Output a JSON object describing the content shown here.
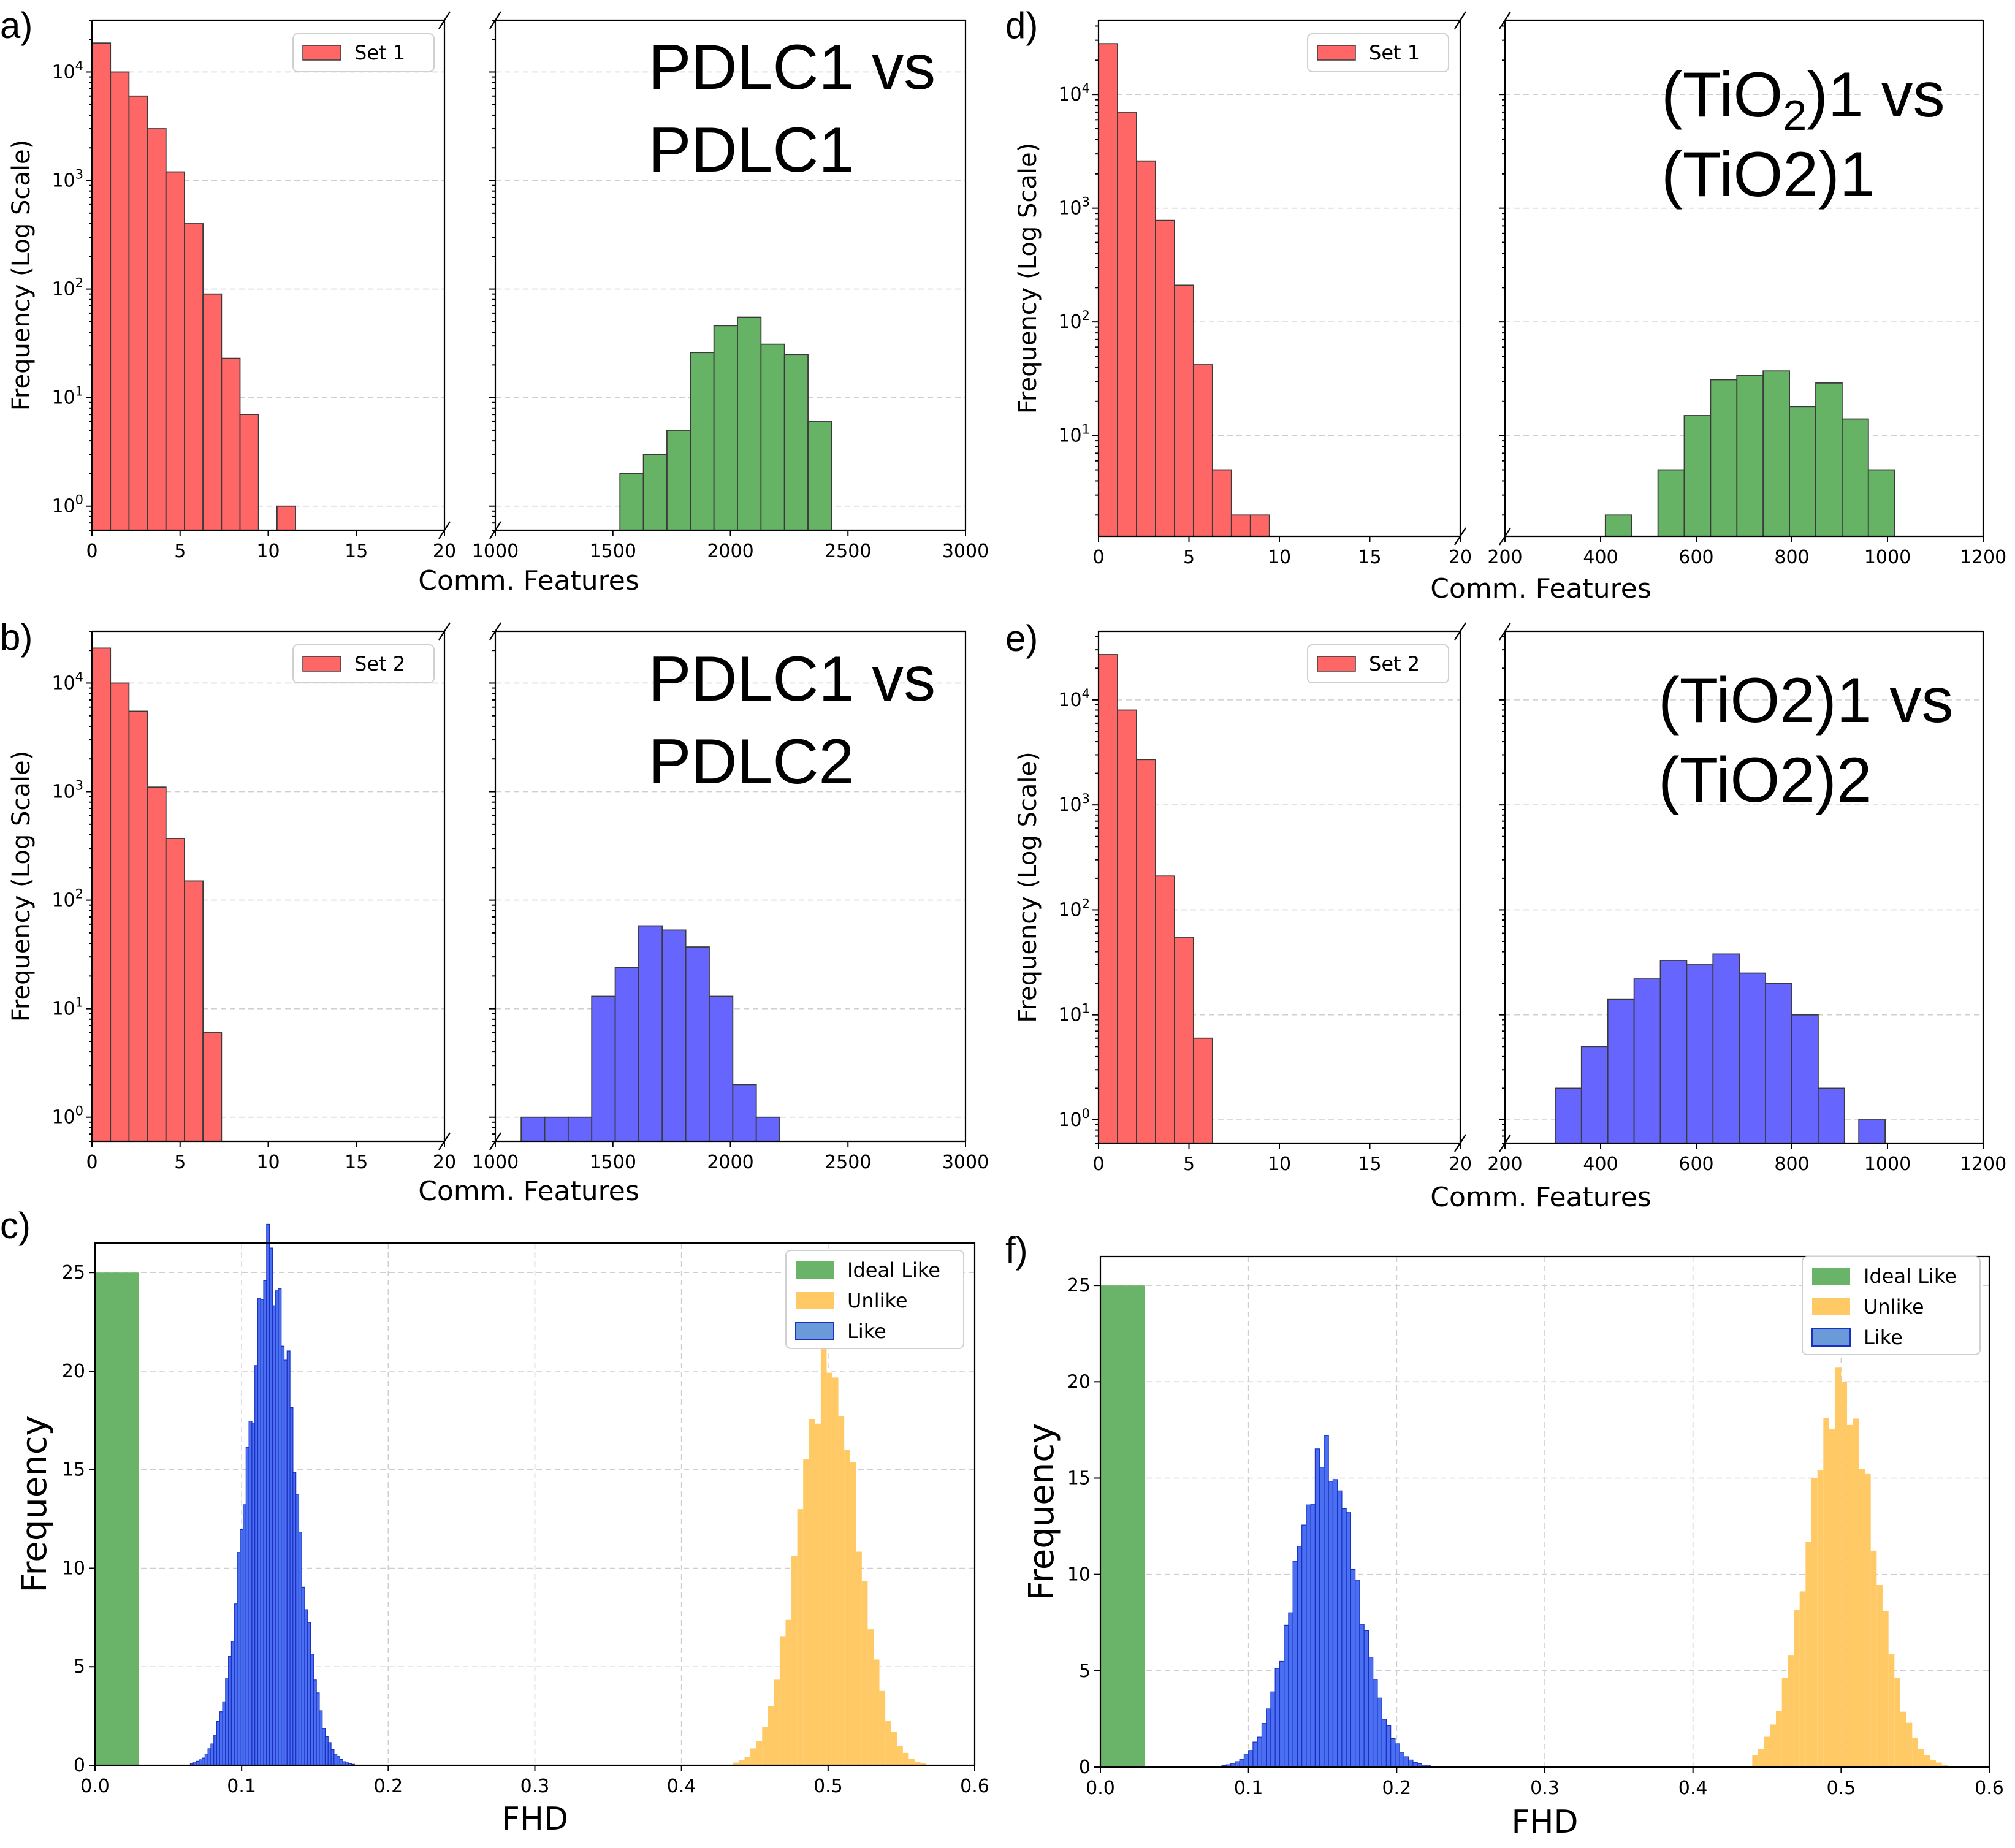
{
  "chart_data": [
    {
      "panel": "a)",
      "type": "bar",
      "layout": "broken-x-axis histogram pair",
      "ylabel": "Frequency (Log Scale)",
      "xlabel": "Comm. Features",
      "yscale": "log",
      "ylim": [
        0.6,
        30000
      ],
      "left": {
        "series": "Set 1",
        "color": "#ff6666",
        "xlim": [
          0,
          20
        ],
        "xticks": [
          "0",
          "5",
          "10",
          "15",
          "20"
        ],
        "bins": [
          {
            "x0": 0,
            "x1": 1.05,
            "v": 18500
          },
          {
            "x0": 1.05,
            "x1": 2.1,
            "v": 10000
          },
          {
            "x0": 2.1,
            "x1": 3.15,
            "v": 6000
          },
          {
            "x0": 3.15,
            "x1": 4.2,
            "v": 3000
          },
          {
            "x0": 4.2,
            "x1": 5.25,
            "v": 1200
          },
          {
            "x0": 5.25,
            "x1": 6.3,
            "v": 400
          },
          {
            "x0": 6.3,
            "x1": 7.35,
            "v": 90
          },
          {
            "x0": 7.35,
            "x1": 8.4,
            "v": 23
          },
          {
            "x0": 8.4,
            "x1": 9.45,
            "v": 7
          },
          {
            "x0": 10.5,
            "x1": 11.55,
            "v": 1
          }
        ]
      },
      "right": {
        "color": "#66b366",
        "xlim": [
          1000,
          3000
        ],
        "xticks": [
          "1000",
          "1500",
          "2000",
          "2500",
          "3000"
        ],
        "bins": [
          {
            "x0": 1530,
            "x1": 1630,
            "v": 2
          },
          {
            "x0": 1630,
            "x1": 1730,
            "v": 3
          },
          {
            "x0": 1730,
            "x1": 1830,
            "v": 5
          },
          {
            "x0": 1830,
            "x1": 1930,
            "v": 26
          },
          {
            "x0": 1930,
            "x1": 2030,
            "v": 46
          },
          {
            "x0": 2030,
            "x1": 2130,
            "v": 55
          },
          {
            "x0": 2130,
            "x1": 2230,
            "v": 31
          },
          {
            "x0": 2230,
            "x1": 2330,
            "v": 25
          },
          {
            "x0": 2330,
            "x1": 2430,
            "v": 6
          }
        ]
      },
      "legend": [
        "Set 1"
      ],
      "annotation": [
        "PDLC1 vs",
        "PDLC1"
      ]
    },
    {
      "panel": "b)",
      "type": "bar",
      "layout": "broken-x-axis histogram pair",
      "ylabel": "Frequency (Log Scale)",
      "xlabel": "Comm. Features",
      "yscale": "log",
      "ylim": [
        0.6,
        30000
      ],
      "left": {
        "series": "Set 2",
        "color": "#ff6666",
        "xlim": [
          0,
          20
        ],
        "xticks": [
          "0",
          "5",
          "10",
          "15",
          "20"
        ],
        "bins": [
          {
            "x0": 0,
            "x1": 1.05,
            "v": 21000
          },
          {
            "x0": 1.05,
            "x1": 2.1,
            "v": 10000
          },
          {
            "x0": 2.1,
            "x1": 3.15,
            "v": 5500
          },
          {
            "x0": 3.15,
            "x1": 4.2,
            "v": 1100
          },
          {
            "x0": 4.2,
            "x1": 5.25,
            "v": 370
          },
          {
            "x0": 5.25,
            "x1": 6.3,
            "v": 150
          },
          {
            "x0": 6.3,
            "x1": 7.35,
            "v": 6
          }
        ]
      },
      "right": {
        "color": "#6666ff",
        "xlim": [
          1000,
          3000
        ],
        "xticks": [
          "1000",
          "1500",
          "2000",
          "2500",
          "3000"
        ],
        "bins": [
          {
            "x0": 1110,
            "x1": 1210,
            "v": 1
          },
          {
            "x0": 1210,
            "x1": 1310,
            "v": 1
          },
          {
            "x0": 1310,
            "x1": 1410,
            "v": 1
          },
          {
            "x0": 1410,
            "x1": 1510,
            "v": 13
          },
          {
            "x0": 1510,
            "x1": 1610,
            "v": 24
          },
          {
            "x0": 1610,
            "x1": 1710,
            "v": 58
          },
          {
            "x0": 1710,
            "x1": 1810,
            "v": 53
          },
          {
            "x0": 1810,
            "x1": 1910,
            "v": 37
          },
          {
            "x0": 1910,
            "x1": 2010,
            "v": 13
          },
          {
            "x0": 2010,
            "x1": 2110,
            "v": 2
          },
          {
            "x0": 2110,
            "x1": 2210,
            "v": 1
          }
        ]
      },
      "legend": [
        "Set 2"
      ],
      "annotation": [
        "PDLC1 vs",
        "PDLC2"
      ]
    },
    {
      "panel": "d)",
      "type": "bar",
      "layout": "broken-x-axis histogram pair",
      "ylabel": "Frequency (Log Scale)",
      "xlabel": "Comm. Features",
      "yscale": "log",
      "ylim": [
        1.3,
        45000
      ],
      "left": {
        "series": "Set 1",
        "color": "#ff6666",
        "xlim": [
          0,
          20
        ],
        "xticks": [
          "0",
          "5",
          "10",
          "15",
          "20"
        ],
        "bins": [
          {
            "x0": 0,
            "x1": 1.05,
            "v": 28000
          },
          {
            "x0": 1.05,
            "x1": 2.1,
            "v": 7000
          },
          {
            "x0": 2.1,
            "x1": 3.15,
            "v": 2600
          },
          {
            "x0": 3.15,
            "x1": 4.2,
            "v": 780
          },
          {
            "x0": 4.2,
            "x1": 5.25,
            "v": 210
          },
          {
            "x0": 5.25,
            "x1": 6.3,
            "v": 42
          },
          {
            "x0": 6.3,
            "x1": 7.35,
            "v": 5
          },
          {
            "x0": 7.35,
            "x1": 8.4,
            "v": 2
          },
          {
            "x0": 8.4,
            "x1": 9.45,
            "v": 2
          }
        ]
      },
      "right": {
        "color": "#66b366",
        "xlim": [
          200,
          1200
        ],
        "xticks": [
          "200",
          "400",
          "600",
          "800",
          "1000",
          "1200"
        ],
        "bins": [
          {
            "x0": 410,
            "x1": 465,
            "v": 2
          },
          {
            "x0": 520,
            "x1": 575,
            "v": 5
          },
          {
            "x0": 575,
            "x1": 630,
            "v": 15
          },
          {
            "x0": 630,
            "x1": 685,
            "v": 31
          },
          {
            "x0": 685,
            "x1": 740,
            "v": 34
          },
          {
            "x0": 740,
            "x1": 795,
            "v": 37
          },
          {
            "x0": 795,
            "x1": 850,
            "v": 18
          },
          {
            "x0": 850,
            "x1": 905,
            "v": 29
          },
          {
            "x0": 905,
            "x1": 960,
            "v": 14
          },
          {
            "x0": 960,
            "x1": 1015,
            "v": 5
          }
        ]
      },
      "legend": [
        "Set 1"
      ],
      "annotation": [
        "(TiO2)1 vs",
        "(TiO2)1"
      ]
    },
    {
      "panel": "e)",
      "type": "bar",
      "layout": "broken-x-axis histogram pair",
      "ylabel": "Frequency (Log Scale)",
      "xlabel": "Comm. Features",
      "yscale": "log",
      "ylim": [
        0.6,
        45000
      ],
      "left": {
        "series": "Set 2",
        "color": "#ff6666",
        "xlim": [
          0,
          20
        ],
        "xticks": [
          "0",
          "5",
          "10",
          "15",
          "20"
        ],
        "bins": [
          {
            "x0": 0,
            "x1": 1.05,
            "v": 27000
          },
          {
            "x0": 1.05,
            "x1": 2.1,
            "v": 8000
          },
          {
            "x0": 2.1,
            "x1": 3.15,
            "v": 2700
          },
          {
            "x0": 3.15,
            "x1": 4.2,
            "v": 210
          },
          {
            "x0": 4.2,
            "x1": 5.25,
            "v": 55
          },
          {
            "x0": 5.25,
            "x1": 6.3,
            "v": 6
          }
        ]
      },
      "right": {
        "color": "#6666ff",
        "xlim": [
          200,
          1200
        ],
        "xticks": [
          "200",
          "400",
          "600",
          "800",
          "1000",
          "1200"
        ],
        "bins": [
          {
            "x0": 305,
            "x1": 360,
            "v": 2
          },
          {
            "x0": 360,
            "x1": 415,
            "v": 5
          },
          {
            "x0": 415,
            "x1": 470,
            "v": 14
          },
          {
            "x0": 470,
            "x1": 525,
            "v": 22
          },
          {
            "x0": 525,
            "x1": 580,
            "v": 33
          },
          {
            "x0": 580,
            "x1": 635,
            "v": 30
          },
          {
            "x0": 635,
            "x1": 690,
            "v": 38
          },
          {
            "x0": 690,
            "x1": 745,
            "v": 25
          },
          {
            "x0": 745,
            "x1": 800,
            "v": 20
          },
          {
            "x0": 800,
            "x1": 855,
            "v": 10
          },
          {
            "x0": 855,
            "x1": 910,
            "v": 2
          },
          {
            "x0": 940,
            "x1": 995,
            "v": 1
          }
        ]
      },
      "legend": [
        "Set 2"
      ],
      "annotation": [
        "(TiO2)1 vs",
        "(TiO2)2"
      ]
    },
    {
      "panel": "c)",
      "type": "bar",
      "xlabel": "FHD",
      "ylabel": "Frequency",
      "xlim": [
        0,
        0.6
      ],
      "ylim": [
        0,
        26.5
      ],
      "xticks": [
        "0.0",
        "0.1",
        "0.2",
        "0.3",
        "0.4",
        "0.5",
        "0.6"
      ],
      "yticks": [
        "0",
        "5",
        "10",
        "15",
        "20",
        "25"
      ],
      "legend": [
        "Ideal Like",
        "Unlike",
        "Like"
      ],
      "series": [
        {
          "name": "Ideal Like",
          "type": "bar",
          "color": "#6ab46a",
          "x0": 0.0,
          "x1": 0.03,
          "value": 25
        },
        {
          "name": "Unlike",
          "type": "histogram",
          "color": "#ffc966",
          "mean": 0.5,
          "sd": 0.02,
          "peak": 20.2,
          "range": [
            0.435,
            0.565
          ],
          "binwidth": 0.004
        },
        {
          "name": "Like",
          "type": "histogram",
          "color": "#4a6ff0",
          "edge": "#1a2fc4",
          "mean": 0.12,
          "sd": 0.016,
          "peak": 25.5,
          "range": [
            0.065,
            0.18
          ],
          "binwidth": 0.002
        }
      ]
    },
    {
      "panel": "f)",
      "type": "bar",
      "xlabel": "FHD",
      "ylabel": "Frequency",
      "xlim": [
        0,
        0.6
      ],
      "ylim": [
        0,
        26.5
      ],
      "xticks": [
        "0.0",
        "0.1",
        "0.2",
        "0.3",
        "0.4",
        "0.5",
        "0.6"
      ],
      "yticks": [
        "0",
        "5",
        "10",
        "15",
        "20",
        "25"
      ],
      "legend": [
        "Ideal Like",
        "Unlike",
        "Like"
      ],
      "series": [
        {
          "name": "Ideal Like",
          "type": "bar",
          "color": "#6ab46a",
          "x0": 0.0,
          "x1": 0.03,
          "value": 25
        },
        {
          "name": "Unlike",
          "type": "histogram",
          "color": "#ffc966",
          "mean": 0.5,
          "sd": 0.022,
          "peak": 19.6,
          "range": [
            0.44,
            0.57
          ],
          "binwidth": 0.004
        },
        {
          "name": "Like",
          "type": "histogram",
          "color": "#4a6ff0",
          "edge": "#1a2fc4",
          "mean": 0.152,
          "sd": 0.021,
          "peak": 16.0,
          "range": [
            0.07,
            0.24
          ],
          "binwidth": 0.003
        }
      ]
    }
  ]
}
